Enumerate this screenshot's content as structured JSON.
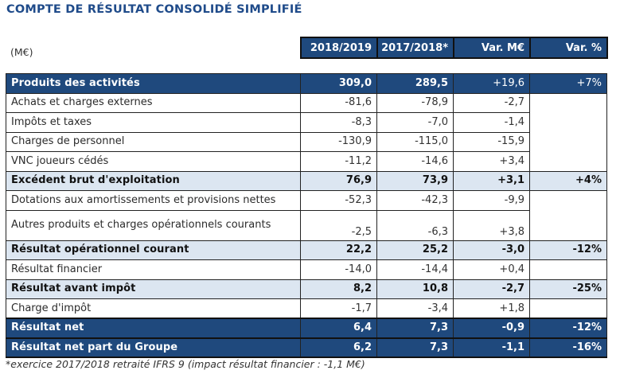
{
  "title": "COMPTE DE RÉSULTAT CONSOLIDÉ SIMPLIFIÉ",
  "unit_label": "(M€)",
  "columns": [
    "2018/2019",
    "2017/2018*",
    "Var. M€",
    "Var. %"
  ],
  "rows": [
    {
      "label": "Produits des activités",
      "y2019": "309,0",
      "y2018": "289,5",
      "var_m": "+19,6",
      "var_pct": "+7%"
    },
    {
      "label": "Achats et charges externes",
      "y2019": "-81,6",
      "y2018": "-78,9",
      "var_m": "-2,7"
    },
    {
      "label": "Impôts et taxes",
      "y2019": "-8,3",
      "y2018": "-7,0",
      "var_m": "-1,4"
    },
    {
      "label": "Charges de personnel",
      "y2019": "-130,9",
      "y2018": "-115,0",
      "var_m": "-15,9"
    },
    {
      "label": "VNC joueurs cédés",
      "y2019": "-11,2",
      "y2018": "-14,6",
      "var_m": "+3,4"
    },
    {
      "label": "Excédent brut d'exploitation",
      "y2019": "76,9",
      "y2018": "73,9",
      "var_m": "+3,1",
      "var_pct": "+4%"
    },
    {
      "label": "Dotations aux amortissements et provisions nettes",
      "y2019": "-52,3",
      "y2018": "-42,3",
      "var_m": "-9,9"
    },
    {
      "label": "Autres produits et charges opérationnels courants",
      "y2019": "-2,5",
      "y2018": "-6,3",
      "var_m": "+3,8"
    },
    {
      "label": "Résultat opérationnel courant",
      "y2019": "22,2",
      "y2018": "25,2",
      "var_m": "-3,0",
      "var_pct": "-12%"
    },
    {
      "label": "Résultat financier",
      "y2019": "-14,0",
      "y2018": "-14,4",
      "var_m": "+0,4"
    },
    {
      "label": "Résultat avant impôt",
      "y2019": "8,2",
      "y2018": "10,8",
      "var_m": "-2,7",
      "var_pct": "-25%"
    },
    {
      "label": "Charge d'impôt",
      "y2019": "-1,7",
      "y2018": "-3,4",
      "var_m": "+1,8"
    },
    {
      "label": "Résultat net",
      "y2019": "6,4",
      "y2018": "7,3",
      "var_m": "-0,9",
      "var_pct": "-12%"
    },
    {
      "label": "Résultat net part du Groupe",
      "y2019": "6,2",
      "y2018": "7,3",
      "var_m": "-1,1",
      "var_pct": "-16%"
    }
  ],
  "footnote": "*exercice 2017/2018 retraité IFRS 9 (impact résultat financier : -1,1 M€)",
  "colors": {
    "title": "#1f4b8a",
    "header_bg": "#1f497d",
    "subtotal_bg": "#dce6f1"
  }
}
